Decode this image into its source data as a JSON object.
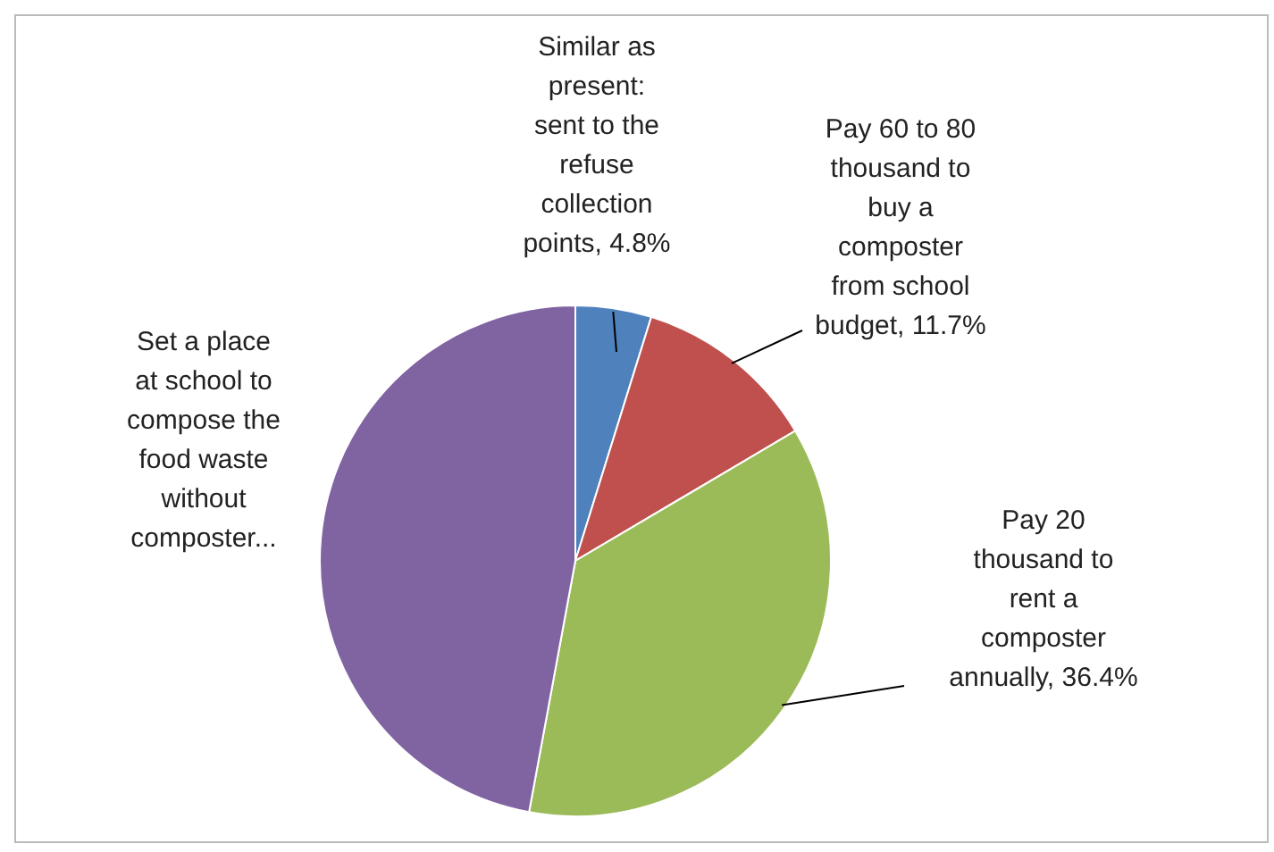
{
  "chart_data": {
    "type": "pie",
    "categories": [
      "Similar as present: sent to the refuse collection points",
      "Pay 60 to 80 thousand to buy a composter from school budget",
      "Pay 20 thousand to rent a composter annually",
      "Set a place at school to compose the food waste without composter..."
    ],
    "values": [
      4.8,
      11.7,
      36.4,
      47.1
    ],
    "value_labels": [
      "4.8%",
      "11.7%",
      "36.4%",
      null
    ],
    "colors": [
      "#4f81bd",
      "#c0504d",
      "#9bbb59",
      "#8064a2"
    ],
    "legend": false
  }
}
